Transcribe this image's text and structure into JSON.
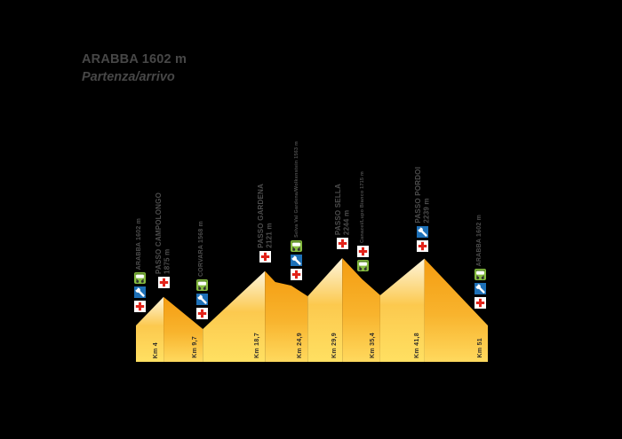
{
  "title": {
    "line1": "ARABBA 1602 m",
    "line2": "Partenza/arrivo"
  },
  "chart_data": {
    "type": "area",
    "title": "ARABBA 1602 m Partenza/arrivo",
    "xlabel": "Km",
    "ylabel": "m",
    "x_domain_km": [
      0,
      51
    ],
    "grid": false,
    "route_points": [
      {
        "km": 0,
        "ele_m": 1602
      },
      {
        "km": 4,
        "ele_m": 1875
      },
      {
        "km": 9.7,
        "ele_m": 1568
      },
      {
        "km": 18.7,
        "ele_m": 2121
      },
      {
        "km": 20.2,
        "ele_m": 2016
      },
      {
        "km": 22.5,
        "ele_m": 1982
      },
      {
        "km": 24.9,
        "ele_m": 1881
      },
      {
        "km": 29.9,
        "ele_m": 2244
      },
      {
        "km": 32.8,
        "ele_m": 2041
      },
      {
        "km": 35.4,
        "ele_m": 1890
      },
      {
        "km": 41.8,
        "ele_m": 2239
      },
      {
        "km": 51,
        "ele_m": 1602
      }
    ],
    "segments": [
      {
        "from_km": 0,
        "to_km": 4,
        "shade": "light"
      },
      {
        "from_km": 4,
        "to_km": 9.7,
        "shade": "dark"
      },
      {
        "from_km": 9.7,
        "to_km": 18.7,
        "shade": "light"
      },
      {
        "from_km": 18.7,
        "to_km": 24.9,
        "shade": "dark"
      },
      {
        "from_km": 24.9,
        "to_km": 29.9,
        "shade": "light"
      },
      {
        "from_km": 29.9,
        "to_km": 35.4,
        "shade": "dark"
      },
      {
        "from_km": 35.4,
        "to_km": 41.8,
        "shade": "light"
      },
      {
        "from_km": 41.8,
        "to_km": 51,
        "shade": "dark"
      }
    ],
    "km_markers": [
      {
        "km": 4,
        "label": "Km 4"
      },
      {
        "km": 9.7,
        "label": "Km 9,7"
      },
      {
        "km": 18.7,
        "label": "Km 18,7"
      },
      {
        "km": 24.9,
        "label": "Km 24,9"
      },
      {
        "km": 29.9,
        "label": "Km 29,9"
      },
      {
        "km": 35.4,
        "label": "Km 35,4"
      },
      {
        "km": 41.8,
        "label": "Km 41,8"
      },
      {
        "km": 51,
        "label": "Km 51"
      }
    ],
    "waypoints": [
      {
        "id": "arabba-start",
        "km": 0.6,
        "label": "ARABBA 1602 m",
        "elevation": "",
        "style": "town",
        "icons": [
          "shuttle-bus",
          "mechanic",
          "first-aid"
        ]
      },
      {
        "id": "passo-campolongo",
        "km": 4,
        "label": "PASSO CAMPOLONGO",
        "elevation": "1875 m",
        "style": "pass",
        "icons": [
          "first-aid"
        ]
      },
      {
        "id": "corvara",
        "km": 9.6,
        "label": "CORVARA 1568 m",
        "elevation": "",
        "style": "town",
        "icons": [
          "shuttle-bus",
          "mechanic",
          "first-aid"
        ]
      },
      {
        "id": "passo-gardena",
        "km": 18.7,
        "label": "PASSO GARDENA",
        "elevation": "2121 m",
        "style": "pass",
        "icons": [
          "first-aid"
        ]
      },
      {
        "id": "selva-wolkenstein",
        "km": 23.3,
        "label": "Selva Val Gardena/Wolkenstein 1563 m",
        "elevation": "",
        "style": "village",
        "icons": [
          "shuttle-bus",
          "mechanic",
          "first-aid"
        ]
      },
      {
        "id": "passo-sella",
        "km": 29.9,
        "label": "PASSO SELLA",
        "elevation": "2244 m",
        "style": "pass",
        "icons": [
          "first-aid"
        ]
      },
      {
        "id": "canazei-lupo-bianco",
        "km": 32.9,
        "label": "Canazei/Lupo Bianco 1715 m",
        "elevation": "",
        "style": "village",
        "icons": [
          "first-aid",
          "shuttle-bus"
        ]
      },
      {
        "id": "passo-pordoi",
        "km": 41.5,
        "label": "PASSO PORDOI",
        "elevation": "2239 m",
        "style": "pass",
        "icons": [
          "mechanic",
          "first-aid"
        ]
      },
      {
        "id": "arabba-finish",
        "km": 49.9,
        "label": "ARABBA 1602 m",
        "elevation": "",
        "style": "town",
        "icons": [
          "shuttle-bus",
          "mechanic",
          "first-aid"
        ]
      }
    ],
    "colors": {
      "background": "#000000",
      "title_text": "#474747",
      "label_text": "#4d4d4d",
      "km_text": "#33302a",
      "segment_light_top": "#fdf5dd",
      "segment_light_mid": "#fcc94e",
      "segment_light_bottom": "#ffe062",
      "segment_dark_top": "#f49c10",
      "segment_dark_mid": "#f8b42e",
      "segment_dark_bottom": "#ffd95e",
      "bus_green": "#86bc40",
      "bus_green_dark": "#5e8c28",
      "wrench_blue": "#1d70b7",
      "cross_red": "#e2231a",
      "icon_white": "#ffffff",
      "wheel_dark": "#2f2f2f"
    }
  }
}
